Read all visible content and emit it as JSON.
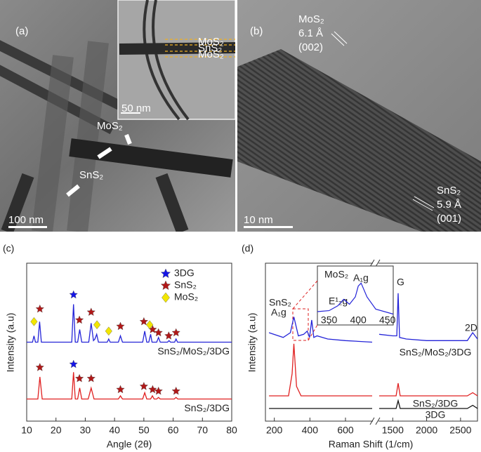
{
  "images": {
    "a": {
      "panel": "(a)",
      "mos2": "MoS₂",
      "sns2": "SnS₂",
      "scale": "100 nm",
      "inset_scale": "50 nm",
      "inset_layers": [
        "MoS₂",
        "SnS₂",
        "MoS₂"
      ]
    },
    "b": {
      "panel": "(b)",
      "mos2": "MoS₂",
      "mos2_spacing": "6.1 Å",
      "mos2_plane": "(002)",
      "sns2": "SnS₂",
      "sns2_spacing": "5.9 Å",
      "sns2_plane": "(001)",
      "scale": "10 nm"
    }
  },
  "chart_data": [
    {
      "type": "line",
      "panel": "(c)",
      "xlabel": "Angle (2θ)",
      "ylabel": "Intensity (a.u)",
      "xlim": [
        10,
        80
      ],
      "xticks": [
        10,
        20,
        30,
        40,
        50,
        60,
        70,
        80
      ],
      "ylim": [
        0,
        100
      ],
      "legend_position": "upper right",
      "legend": [
        {
          "name": "3DG",
          "color": "#1515e6",
          "shape": "star",
          "markers": {
            "x": [
              26,
              26
            ],
            "y": [
              80,
              36
            ]
          }
        },
        {
          "name": "SnS₂",
          "color": "#b01818",
          "shape": "star",
          "markers": {
            "x": [
              14.5,
              28,
              32,
              42,
              50,
              53,
              55,
              58.5,
              61,
              14.5,
              28,
              32,
              42,
              50,
              53,
              55,
              61
            ],
            "y": [
              71,
              64,
              69,
              60,
              63,
              58,
              56,
              54,
              56,
              34,
              27,
              27,
              20,
              22,
              20,
              19,
              19
            ]
          }
        },
        {
          "name": "MoS₂",
          "color": "#f2e600",
          "shape": "diamond",
          "markers": {
            "x": [
              12.5,
              34,
              38,
              52
            ],
            "y": [
              63,
              61,
              57,
              61
            ]
          }
        }
      ],
      "series": [
        {
          "name": "SnS₂/MoS₂/3DG",
          "color": "#2424d8",
          "x": [
            10,
            12,
            12.5,
            13,
            13.8,
            14.4,
            15,
            16,
            25.4,
            26,
            26.6,
            27.4,
            28.1,
            28.8,
            31.2,
            32,
            32.8,
            33.3,
            33.9,
            34.5,
            37.5,
            38,
            38.5,
            41.3,
            42,
            42.7,
            49.6,
            50.3,
            51,
            51.7,
            52.3,
            52.8,
            54.4,
            55,
            55.6,
            58.1,
            58.6,
            59.1,
            60.5,
            61,
            61.5,
            80
          ],
          "values": [
            50,
            50,
            54,
            50,
            50,
            63,
            50,
            50,
            50,
            74,
            50,
            50,
            58,
            50,
            50,
            62,
            51,
            52,
            55,
            50,
            50,
            52,
            50,
            50,
            54,
            50,
            50,
            57,
            50,
            50,
            55,
            50,
            50,
            53,
            50,
            50,
            51,
            50,
            50,
            52,
            50,
            50
          ]
        },
        {
          "name": "SnS₂/3DG",
          "color": "#e02020",
          "x": [
            10,
            13.8,
            14.5,
            15.3,
            25.4,
            26,
            26.6,
            27.4,
            28.1,
            28.8,
            31,
            32,
            33,
            41.3,
            42,
            42.7,
            49.6,
            50.3,
            51,
            52.3,
            52.9,
            53.5,
            54.4,
            55,
            55.6,
            60.4,
            61,
            61.6,
            80
          ],
          "values": [
            14,
            14,
            28,
            14,
            14,
            31,
            14,
            14,
            21,
            14,
            14,
            21,
            14,
            14,
            16,
            14,
            14,
            18,
            14,
            14,
            16,
            14,
            14,
            15,
            14,
            14,
            15,
            14,
            14
          ]
        }
      ]
    },
    {
      "type": "line",
      "panel": "(d)",
      "xlabel": "Raman Shift (1/cm)",
      "ylabel": "Intensity (a.u)",
      "ylim": [
        0,
        100
      ],
      "segments": [
        {
          "xlim": [
            150,
            750
          ],
          "xticks": [
            200,
            400,
            600
          ]
        },
        {
          "xlim": [
            1300,
            2750
          ],
          "xticks": [
            1500,
            2000,
            2500
          ]
        }
      ],
      "annotations": [
        "SnS₂",
        "A₁g",
        "G",
        "2D"
      ],
      "series": [
        {
          "name": "SnS₂/MoS₂/3DG",
          "color": "#2424d8",
          "x": [
            170,
            250,
            290,
            310,
            335,
            365,
            385,
            398,
            410,
            422,
            440,
            500,
            600,
            750,
            1000,
            1300,
            1500,
            1560,
            1580,
            1600,
            1700,
            2000,
            2500,
            2600,
            2680,
            2750
          ],
          "values": [
            56,
            53,
            56,
            66,
            54,
            55,
            57,
            53,
            64,
            53,
            54,
            52,
            51,
            50,
            null,
            55,
            54,
            54,
            81,
            53,
            52,
            51,
            51,
            51,
            56,
            52
          ]
        },
        {
          "name": "SnS₂/3DG",
          "color": "#e02020",
          "x": [
            170,
            280,
            300,
            310,
            325,
            350,
            600,
            750,
            1000,
            1300,
            1550,
            1580,
            1610,
            2000,
            2600,
            2680,
            2750
          ],
          "values": [
            16,
            16,
            30,
            49,
            22,
            16,
            16,
            16,
            null,
            16,
            16,
            24,
            16,
            16,
            16,
            18,
            16
          ]
        },
        {
          "name": "3DG",
          "color": "#111111",
          "x": [
            170,
            750,
            1000,
            1300,
            1550,
            1580,
            1610,
            2600,
            2680,
            2750
          ],
          "values": [
            8,
            8,
            null,
            8,
            8,
            13,
            8,
            8,
            10,
            8
          ]
        }
      ],
      "inset": {
        "title": "MoS₂",
        "labels": [
          "E¹₂g",
          "A₁g"
        ],
        "xlim": [
          330,
          460
        ],
        "xticks": [
          350,
          400,
          450
        ],
        "ylim": [
          0,
          100
        ],
        "color": "#2424d8",
        "x": [
          330,
          350,
          365,
          375,
          385,
          395,
          400,
          405,
          415,
          430,
          460
        ],
        "values": [
          20,
          22,
          32,
          45,
          35,
          50,
          72,
          78,
          50,
          25,
          15
        ]
      }
    }
  ]
}
